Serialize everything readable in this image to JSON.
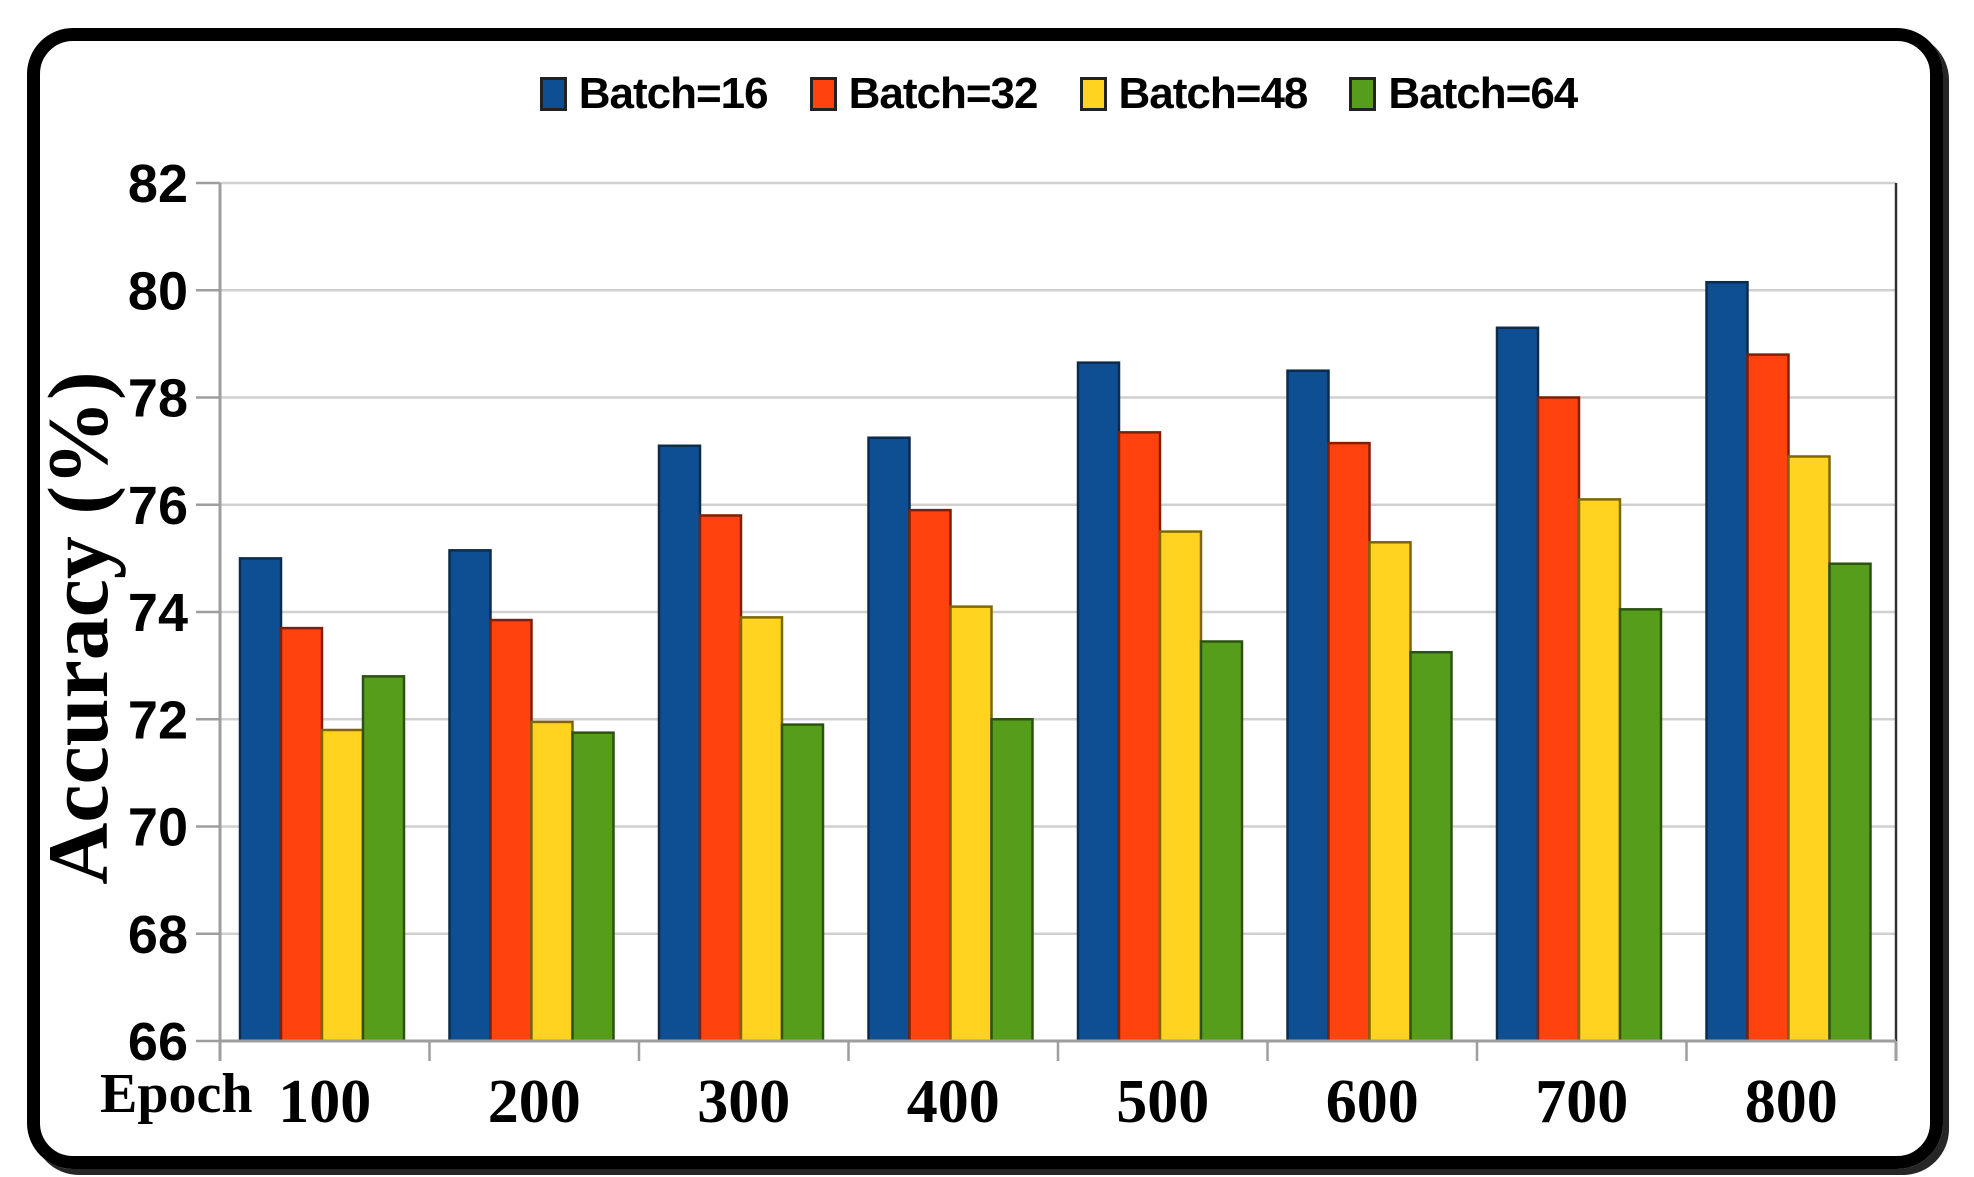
{
  "frame": {
    "border_color": "#000000",
    "background": "#ffffff"
  },
  "chart_data": {
    "type": "bar",
    "title": "",
    "xlabel": "Epoch",
    "ylabel": "Accuracy (%)",
    "categories": [
      "100",
      "200",
      "300",
      "400",
      "500",
      "600",
      "700",
      "800"
    ],
    "series": [
      {
        "name": "Batch=16",
        "color": "#0e4f93",
        "border_color": "#0d2b4b",
        "values": [
          75.0,
          75.15,
          77.1,
          77.25,
          78.65,
          78.5,
          79.3,
          80.15
        ]
      },
      {
        "name": "Batch=32",
        "color": "#ff420e",
        "border_color": "#7e1f06",
        "values": [
          73.7,
          73.85,
          75.8,
          75.9,
          77.35,
          77.15,
          78.0,
          78.8
        ]
      },
      {
        "name": "Batch=48",
        "color": "#ffd320",
        "border_color": "#7d6608",
        "values": [
          71.8,
          71.95,
          73.9,
          74.1,
          75.5,
          75.3,
          76.1,
          76.9
        ]
      },
      {
        "name": "Batch=64",
        "color": "#579d1c",
        "border_color": "#2c5211",
        "values": [
          72.8,
          71.75,
          71.9,
          72.0,
          73.45,
          73.25,
          74.05,
          74.9
        ]
      }
    ],
    "ylim": [
      66,
      82
    ],
    "y_ticks": [
      82,
      80,
      78,
      76,
      74,
      72,
      70,
      68,
      66
    ],
    "grid": true,
    "legend_position": "top",
    "style": {
      "gridline_color": "#d0d0d0",
      "axis_color": "#9e9e9e",
      "plot_right_border_color": "#333333",
      "tick_label_color": "#000000"
    }
  }
}
